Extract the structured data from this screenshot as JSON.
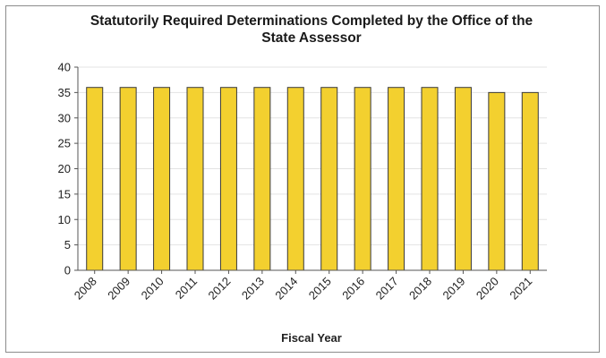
{
  "chart_data": {
    "type": "bar",
    "title_lines": [
      "Statutorily Required Determinations Completed by the Office of the",
      "State Assessor"
    ],
    "xlabel": "Fiscal Year",
    "ylabel": "",
    "categories": [
      "2008",
      "2009",
      "2010",
      "2011",
      "2012",
      "2013",
      "2014",
      "2015",
      "2016",
      "2017",
      "2018",
      "2019",
      "2020",
      "2021"
    ],
    "values": [
      36,
      36,
      36,
      36,
      36,
      36,
      36,
      36,
      36,
      36,
      36,
      36,
      35,
      35
    ],
    "ylim": [
      0,
      40
    ],
    "yticks": [
      0,
      5,
      10,
      15,
      20,
      25,
      30,
      35,
      40
    ],
    "grid": true,
    "legend": "none",
    "bar_color": "#f3d02f",
    "bar_edge_color": "#3a3a3a"
  }
}
